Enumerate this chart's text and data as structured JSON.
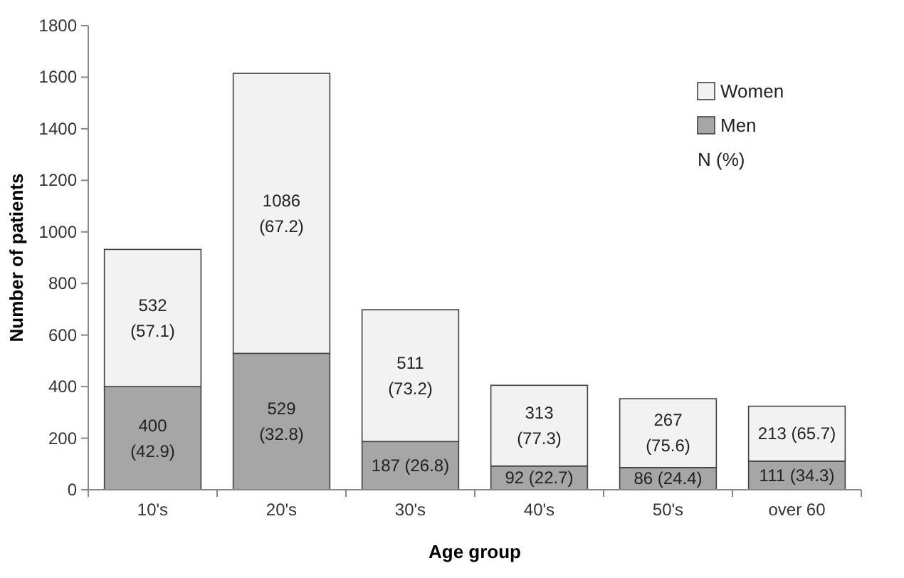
{
  "chart_data": {
    "type": "bar",
    "stacked": true,
    "xlabel": "Age group",
    "ylabel": "Number of patients",
    "categories": [
      "10's",
      "20's",
      "30's",
      "40's",
      "50's",
      "over 60"
    ],
    "series": [
      {
        "name": "Men",
        "color": "#a6a6a6",
        "values": [
          400,
          529,
          187,
          92,
          86,
          111
        ],
        "value_labels": [
          "400 (42.9)",
          "529 (32.8)",
          "187 (26.8)",
          "92 (22.7)",
          "86 (24.4)",
          "111 (34.3)"
        ]
      },
      {
        "name": "Women",
        "color": "#f2f2f2",
        "values": [
          532,
          1086,
          511,
          313,
          267,
          213
        ],
        "value_labels": [
          "532 (57.1)",
          "1086 (67.2)",
          "511 (73.2)",
          "313 (77.3)",
          "267 (75.6)",
          "213 (65.7)"
        ]
      }
    ],
    "ylim": [
      0,
      1800
    ],
    "yticks": [
      0,
      200,
      400,
      600,
      800,
      1000,
      1200,
      1400,
      1600,
      1800
    ],
    "grid": false,
    "legend": "top right",
    "annotations": [
      "N (%)"
    ]
  }
}
